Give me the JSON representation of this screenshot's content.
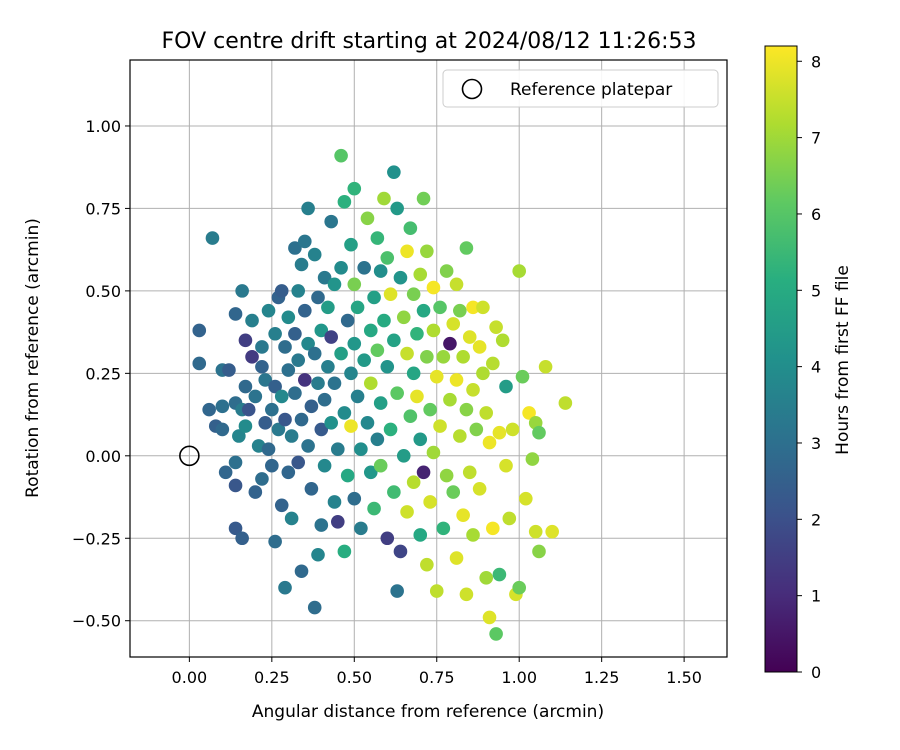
{
  "chart_data": {
    "type": "scatter",
    "title": "FOV centre drift starting at 2024/08/12 11:26:53",
    "xlabel": "Angular distance from reference (arcmin)",
    "ylabel": "Rotation from reference (arcmin)",
    "xlim": [
      -0.18,
      1.63
    ],
    "ylim": [
      -0.61,
      1.2
    ],
    "xticks": [
      "0.00",
      "0.25",
      "0.50",
      "0.75",
      "1.00",
      "1.25",
      "1.50"
    ],
    "yticks": [
      "−0.50",
      "−0.25",
      "0.00",
      "0.25",
      "0.50",
      "0.75",
      "1.00"
    ],
    "grid": true,
    "legend": {
      "location": "upper right",
      "label": "Reference platepar"
    },
    "reference_point": {
      "x": 0.0,
      "y": 0.0
    },
    "colorbar": {
      "label": "Hours from first FF file",
      "min": 0,
      "max": 8.2,
      "ticks": [
        "0",
        "1",
        "2",
        "3",
        "4",
        "5",
        "6",
        "7",
        "8"
      ],
      "colormap": "viridis"
    },
    "points": [
      {
        "x": 0.07,
        "y": 0.66,
        "h": 3.4
      },
      {
        "x": 0.03,
        "y": 0.38,
        "h": 2.6
      },
      {
        "x": 0.03,
        "y": 0.28,
        "h": 2.8
      },
      {
        "x": 0.06,
        "y": 0.14,
        "h": 2.7
      },
      {
        "x": 0.08,
        "y": 0.09,
        "h": 2.5
      },
      {
        "x": 0.1,
        "y": 0.08,
        "h": 2.8
      },
      {
        "x": 0.1,
        "y": 0.15,
        "h": 3.0
      },
      {
        "x": 0.1,
        "y": 0.26,
        "h": 3.1
      },
      {
        "x": 0.12,
        "y": 0.26,
        "h": 2.4
      },
      {
        "x": 0.11,
        "y": -0.05,
        "h": 2.7
      },
      {
        "x": 0.14,
        "y": -0.02,
        "h": 3.0
      },
      {
        "x": 0.14,
        "y": -0.09,
        "h": 2.2
      },
      {
        "x": 0.14,
        "y": 0.16,
        "h": 2.9
      },
      {
        "x": 0.14,
        "y": 0.43,
        "h": 2.7
      },
      {
        "x": 0.15,
        "y": 0.06,
        "h": 3.7
      },
      {
        "x": 0.16,
        "y": 0.14,
        "h": 3.4
      },
      {
        "x": 0.17,
        "y": 0.21,
        "h": 2.8
      },
      {
        "x": 0.17,
        "y": 0.35,
        "h": 1.5
      },
      {
        "x": 0.16,
        "y": 0.5,
        "h": 3.3
      },
      {
        "x": 0.14,
        "y": -0.22,
        "h": 2.3
      },
      {
        "x": 0.16,
        "y": -0.25,
        "h": 2.5
      },
      {
        "x": 0.17,
        "y": 0.09,
        "h": 3.9
      },
      {
        "x": 0.18,
        "y": 0.14,
        "h": 2.1
      },
      {
        "x": 0.19,
        "y": 0.41,
        "h": 3.5
      },
      {
        "x": 0.19,
        "y": 0.3,
        "h": 1.4
      },
      {
        "x": 0.2,
        "y": -0.11,
        "h": 2.6
      },
      {
        "x": 0.2,
        "y": 0.18,
        "h": 3.1
      },
      {
        "x": 0.21,
        "y": 0.03,
        "h": 3.6
      },
      {
        "x": 0.22,
        "y": 0.33,
        "h": 3.3
      },
      {
        "x": 0.22,
        "y": 0.27,
        "h": 2.6
      },
      {
        "x": 0.22,
        "y": -0.07,
        "h": 2.9
      },
      {
        "x": 0.23,
        "y": 0.23,
        "h": 3.2
      },
      {
        "x": 0.23,
        "y": 0.1,
        "h": 2.4
      },
      {
        "x": 0.24,
        "y": 0.44,
        "h": 3.7
      },
      {
        "x": 0.24,
        "y": 0.02,
        "h": 2.8
      },
      {
        "x": 0.25,
        "y": 0.14,
        "h": 3.0
      },
      {
        "x": 0.25,
        "y": -0.03,
        "h": 2.7
      },
      {
        "x": 0.26,
        "y": 0.37,
        "h": 3.5
      },
      {
        "x": 0.26,
        "y": 0.21,
        "h": 2.5
      },
      {
        "x": 0.26,
        "y": -0.26,
        "h": 2.9
      },
      {
        "x": 0.27,
        "y": 0.48,
        "h": 2.6
      },
      {
        "x": 0.27,
        "y": 0.08,
        "h": 3.3
      },
      {
        "x": 0.28,
        "y": 0.5,
        "h": 2.4
      },
      {
        "x": 0.28,
        "y": 0.18,
        "h": 3.8
      },
      {
        "x": 0.28,
        "y": -0.15,
        "h": 2.6
      },
      {
        "x": 0.29,
        "y": 0.33,
        "h": 2.9
      },
      {
        "x": 0.29,
        "y": 0.11,
        "h": 2.2
      },
      {
        "x": 0.29,
        "y": -0.4,
        "h": 3.3
      },
      {
        "x": 0.3,
        "y": 0.42,
        "h": 3.9
      },
      {
        "x": 0.3,
        "y": 0.26,
        "h": 3.0
      },
      {
        "x": 0.3,
        "y": -0.05,
        "h": 2.7
      },
      {
        "x": 0.31,
        "y": 0.06,
        "h": 3.4
      },
      {
        "x": 0.31,
        "y": -0.19,
        "h": 3.6
      },
      {
        "x": 0.32,
        "y": 0.37,
        "h": 2.5
      },
      {
        "x": 0.32,
        "y": 0.19,
        "h": 2.9
      },
      {
        "x": 0.32,
        "y": 0.63,
        "h": 3.0
      },
      {
        "x": 0.33,
        "y": 0.5,
        "h": 3.6
      },
      {
        "x": 0.33,
        "y": 0.29,
        "h": 3.3
      },
      {
        "x": 0.33,
        "y": -0.02,
        "h": 2.2
      },
      {
        "x": 0.34,
        "y": 0.11,
        "h": 2.8
      },
      {
        "x": 0.34,
        "y": 0.58,
        "h": 3.4
      },
      {
        "x": 0.34,
        "y": -0.35,
        "h": 2.8
      },
      {
        "x": 0.35,
        "y": 0.65,
        "h": 3.2
      },
      {
        "x": 0.35,
        "y": 0.23,
        "h": 1.2
      },
      {
        "x": 0.35,
        "y": 0.44,
        "h": 2.6
      },
      {
        "x": 0.36,
        "y": 0.34,
        "h": 3.8
      },
      {
        "x": 0.36,
        "y": 0.03,
        "h": 3.1
      },
      {
        "x": 0.36,
        "y": 0.75,
        "h": 3.5
      },
      {
        "x": 0.37,
        "y": 0.15,
        "h": 2.5
      },
      {
        "x": 0.37,
        "y": -0.1,
        "h": 2.7
      },
      {
        "x": 0.38,
        "y": 0.61,
        "h": 3.6
      },
      {
        "x": 0.38,
        "y": 0.31,
        "h": 3.0
      },
      {
        "x": 0.38,
        "y": -0.46,
        "h": 2.9
      },
      {
        "x": 0.39,
        "y": 0.48,
        "h": 2.8
      },
      {
        "x": 0.39,
        "y": 0.22,
        "h": 3.4
      },
      {
        "x": 0.39,
        "y": -0.3,
        "h": 3.7
      },
      {
        "x": 0.4,
        "y": 0.08,
        "h": 2.3
      },
      {
        "x": 0.4,
        "y": 0.38,
        "h": 4.3
      },
      {
        "x": 0.4,
        "y": -0.21,
        "h": 3.1
      },
      {
        "x": 0.41,
        "y": 0.54,
        "h": 3.3
      },
      {
        "x": 0.41,
        "y": 0.17,
        "h": 2.9
      },
      {
        "x": 0.41,
        "y": -0.03,
        "h": 3.8
      },
      {
        "x": 0.42,
        "y": 0.27,
        "h": 3.5
      },
      {
        "x": 0.42,
        "y": 0.45,
        "h": 4.5
      },
      {
        "x": 0.43,
        "y": 0.71,
        "h": 3.2
      },
      {
        "x": 0.43,
        "y": 0.36,
        "h": 1.6
      },
      {
        "x": 0.43,
        "y": 0.1,
        "h": 4.1
      },
      {
        "x": 0.44,
        "y": 0.22,
        "h": 3.1
      },
      {
        "x": 0.44,
        "y": 0.52,
        "h": 4.2
      },
      {
        "x": 0.44,
        "y": -0.14,
        "h": 3.6
      },
      {
        "x": 0.45,
        "y": 0.02,
        "h": 3.4
      },
      {
        "x": 0.45,
        "y": -0.2,
        "h": 1.5
      },
      {
        "x": 0.46,
        "y": 0.31,
        "h": 4.6
      },
      {
        "x": 0.46,
        "y": 0.57,
        "h": 3.9
      },
      {
        "x": 0.46,
        "y": 0.91,
        "h": 6.0
      },
      {
        "x": 0.47,
        "y": 0.77,
        "h": 5.2
      },
      {
        "x": 0.47,
        "y": 0.13,
        "h": 3.9
      },
      {
        "x": 0.47,
        "y": -0.29,
        "h": 5.1
      },
      {
        "x": 0.48,
        "y": 0.41,
        "h": 2.8
      },
      {
        "x": 0.48,
        "y": -0.06,
        "h": 4.9
      },
      {
        "x": 0.49,
        "y": 0.25,
        "h": 3.7
      },
      {
        "x": 0.49,
        "y": 0.64,
        "h": 4.6
      },
      {
        "x": 0.49,
        "y": 0.09,
        "h": 8.0
      },
      {
        "x": 0.5,
        "y": 0.81,
        "h": 5.3
      },
      {
        "x": 0.5,
        "y": 0.34,
        "h": 4.3
      },
      {
        "x": 0.5,
        "y": 0.52,
        "h": 6.5
      },
      {
        "x": 0.5,
        "y": -0.13,
        "h": 2.9
      },
      {
        "x": 0.51,
        "y": 0.18,
        "h": 3.5
      },
      {
        "x": 0.51,
        "y": 0.45,
        "h": 4.8
      },
      {
        "x": 0.52,
        "y": 0.02,
        "h": 4.0
      },
      {
        "x": 0.52,
        "y": -0.22,
        "h": 3.4
      },
      {
        "x": 0.53,
        "y": 0.29,
        "h": 4.4
      },
      {
        "x": 0.53,
        "y": 0.57,
        "h": 3.1
      },
      {
        "x": 0.54,
        "y": 0.1,
        "h": 3.8
      },
      {
        "x": 0.54,
        "y": 0.72,
        "h": 6.7
      },
      {
        "x": 0.55,
        "y": 0.38,
        "h": 4.9
      },
      {
        "x": 0.55,
        "y": -0.05,
        "h": 4.3
      },
      {
        "x": 0.55,
        "y": 0.22,
        "h": 7.2
      },
      {
        "x": 0.56,
        "y": 0.48,
        "h": 4.6
      },
      {
        "x": 0.56,
        "y": -0.16,
        "h": 5.5
      },
      {
        "x": 0.57,
        "y": 0.66,
        "h": 5.4
      },
      {
        "x": 0.57,
        "y": 0.32,
        "h": 6.2
      },
      {
        "x": 0.57,
        "y": 0.05,
        "h": 3.5
      },
      {
        "x": 0.58,
        "y": 0.56,
        "h": 4.0
      },
      {
        "x": 0.58,
        "y": 0.16,
        "h": 4.6
      },
      {
        "x": 0.58,
        "y": -0.03,
        "h": 6.3
      },
      {
        "x": 0.59,
        "y": 0.78,
        "h": 7.0
      },
      {
        "x": 0.59,
        "y": 0.41,
        "h": 5.0
      },
      {
        "x": 0.6,
        "y": 0.27,
        "h": 4.2
      },
      {
        "x": 0.6,
        "y": 0.6,
        "h": 5.8
      },
      {
        "x": 0.6,
        "y": -0.25,
        "h": 1.5
      },
      {
        "x": 0.61,
        "y": 0.08,
        "h": 5.2
      },
      {
        "x": 0.61,
        "y": 0.49,
        "h": 7.8
      },
      {
        "x": 0.62,
        "y": 0.35,
        "h": 4.7
      },
      {
        "x": 0.62,
        "y": -0.11,
        "h": 5.6
      },
      {
        "x": 0.62,
        "y": 0.86,
        "h": 4.1
      },
      {
        "x": 0.63,
        "y": 0.75,
        "h": 4.4
      },
      {
        "x": 0.63,
        "y": 0.19,
        "h": 6.1
      },
      {
        "x": 0.63,
        "y": -0.41,
        "h": 3.1
      },
      {
        "x": 0.64,
        "y": 0.54,
        "h": 4.2
      },
      {
        "x": 0.64,
        "y": -0.29,
        "h": 1.7
      },
      {
        "x": 0.65,
        "y": 0.42,
        "h": 6.8
      },
      {
        "x": 0.65,
        "y": 0.0,
        "h": 4.5
      },
      {
        "x": 0.66,
        "y": 0.31,
        "h": 7.5
      },
      {
        "x": 0.66,
        "y": 0.62,
        "h": 8.0
      },
      {
        "x": 0.66,
        "y": -0.17,
        "h": 7.6
      },
      {
        "x": 0.67,
        "y": 0.12,
        "h": 5.9
      },
      {
        "x": 0.67,
        "y": 0.69,
        "h": 5.7
      },
      {
        "x": 0.68,
        "y": 0.49,
        "h": 6.5
      },
      {
        "x": 0.68,
        "y": 0.25,
        "h": 4.8
      },
      {
        "x": 0.68,
        "y": -0.08,
        "h": 7.3
      },
      {
        "x": 0.69,
        "y": 0.37,
        "h": 5.3
      },
      {
        "x": 0.69,
        "y": 0.18,
        "h": 7.9
      },
      {
        "x": 0.7,
        "y": 0.55,
        "h": 7.1
      },
      {
        "x": 0.7,
        "y": 0.05,
        "h": 4.4
      },
      {
        "x": 0.7,
        "y": -0.24,
        "h": 4.9
      },
      {
        "x": 0.71,
        "y": 0.78,
        "h": 6.4
      },
      {
        "x": 0.71,
        "y": 0.44,
        "h": 4.9
      },
      {
        "x": 0.71,
        "y": -0.05,
        "h": 0.8
      },
      {
        "x": 0.72,
        "y": 0.3,
        "h": 6.6
      },
      {
        "x": 0.72,
        "y": 0.62,
        "h": 6.9
      },
      {
        "x": 0.72,
        "y": -0.33,
        "h": 7.4
      },
      {
        "x": 0.73,
        "y": 0.14,
        "h": 6.2
      },
      {
        "x": 0.73,
        "y": -0.14,
        "h": 7.7
      },
      {
        "x": 0.74,
        "y": 0.38,
        "h": 7.2
      },
      {
        "x": 0.74,
        "y": 0.51,
        "h": 8.1
      },
      {
        "x": 0.74,
        "y": 0.01,
        "h": 7.0
      },
      {
        "x": 0.75,
        "y": 0.24,
        "h": 7.9
      },
      {
        "x": 0.75,
        "y": -0.41,
        "h": 7.4
      },
      {
        "x": 0.76,
        "y": 0.45,
        "h": 6.0
      },
      {
        "x": 0.76,
        "y": 0.09,
        "h": 7.6
      },
      {
        "x": 0.77,
        "y": -0.22,
        "h": 5.3
      },
      {
        "x": 0.77,
        "y": 0.3,
        "h": 6.9
      },
      {
        "x": 0.78,
        "y": 0.56,
        "h": 6.6
      },
      {
        "x": 0.78,
        "y": -0.06,
        "h": 6.8
      },
      {
        "x": 0.79,
        "y": 0.17,
        "h": 7.1
      },
      {
        "x": 0.79,
        "y": 0.34,
        "h": 0.5
      },
      {
        "x": 0.8,
        "y": 0.4,
        "h": 7.7
      },
      {
        "x": 0.8,
        "y": -0.11,
        "h": 6.3
      },
      {
        "x": 0.81,
        "y": 0.23,
        "h": 8.0
      },
      {
        "x": 0.81,
        "y": 0.52,
        "h": 7.5
      },
      {
        "x": 0.81,
        "y": -0.31,
        "h": 7.8
      },
      {
        "x": 0.82,
        "y": 0.06,
        "h": 7.3
      },
      {
        "x": 0.82,
        "y": 0.44,
        "h": 6.5
      },
      {
        "x": 0.83,
        "y": 0.3,
        "h": 7.2
      },
      {
        "x": 0.83,
        "y": -0.18,
        "h": 7.9
      },
      {
        "x": 0.84,
        "y": 0.63,
        "h": 6.2
      },
      {
        "x": 0.84,
        "y": 0.14,
        "h": 6.7
      },
      {
        "x": 0.84,
        "y": -0.42,
        "h": 7.6
      },
      {
        "x": 0.85,
        "y": 0.36,
        "h": 7.8
      },
      {
        "x": 0.85,
        "y": -0.05,
        "h": 7.4
      },
      {
        "x": 0.86,
        "y": 0.2,
        "h": 7.5
      },
      {
        "x": 0.86,
        "y": 0.45,
        "h": 8.1
      },
      {
        "x": 0.86,
        "y": -0.24,
        "h": 7.1
      },
      {
        "x": 0.87,
        "y": 0.08,
        "h": 6.6
      },
      {
        "x": 0.88,
        "y": 0.33,
        "h": 7.9
      },
      {
        "x": 0.88,
        "y": -0.1,
        "h": 7.7
      },
      {
        "x": 0.89,
        "y": 0.25,
        "h": 7.2
      },
      {
        "x": 0.89,
        "y": 0.45,
        "h": 7.6
      },
      {
        "x": 0.9,
        "y": -0.37,
        "h": 7.0
      },
      {
        "x": 0.9,
        "y": 0.13,
        "h": 7.4
      },
      {
        "x": 0.91,
        "y": -0.49,
        "h": 7.8
      },
      {
        "x": 0.91,
        "y": 0.04,
        "h": 8.0
      },
      {
        "x": 0.92,
        "y": 0.28,
        "h": 7.3
      },
      {
        "x": 0.92,
        "y": -0.22,
        "h": 8.1
      },
      {
        "x": 0.93,
        "y": 0.39,
        "h": 7.5
      },
      {
        "x": 0.93,
        "y": -0.54,
        "h": 6.1
      },
      {
        "x": 0.94,
        "y": 0.07,
        "h": 7.9
      },
      {
        "x": 0.94,
        "y": -0.36,
        "h": 5.5
      },
      {
        "x": 0.95,
        "y": 0.35,
        "h": 7.2
      },
      {
        "x": 0.96,
        "y": -0.03,
        "h": 7.7
      },
      {
        "x": 0.96,
        "y": 0.21,
        "h": 4.5
      },
      {
        "x": 0.97,
        "y": -0.19,
        "h": 7.4
      },
      {
        "x": 0.98,
        "y": 0.08,
        "h": 7.6
      },
      {
        "x": 0.99,
        "y": -0.42,
        "h": 7.7
      },
      {
        "x": 1.0,
        "y": 0.56,
        "h": 7.1
      },
      {
        "x": 1.0,
        "y": -0.4,
        "h": 6.3
      },
      {
        "x": 1.01,
        "y": 0.24,
        "h": 6.3
      },
      {
        "x": 1.02,
        "y": -0.13,
        "h": 7.7
      },
      {
        "x": 1.03,
        "y": 0.13,
        "h": 8.1
      },
      {
        "x": 1.04,
        "y": -0.01,
        "h": 6.8
      },
      {
        "x": 1.05,
        "y": 0.1,
        "h": 6.9
      },
      {
        "x": 1.05,
        "y": -0.23,
        "h": 7.6
      },
      {
        "x": 1.06,
        "y": 0.07,
        "h": 6.2
      },
      {
        "x": 1.06,
        "y": -0.29,
        "h": 6.7
      },
      {
        "x": 1.08,
        "y": 0.27,
        "h": 7.5
      },
      {
        "x": 1.1,
        "y": -0.23,
        "h": 7.8
      },
      {
        "x": 1.14,
        "y": 0.16,
        "h": 7.4
      }
    ]
  }
}
